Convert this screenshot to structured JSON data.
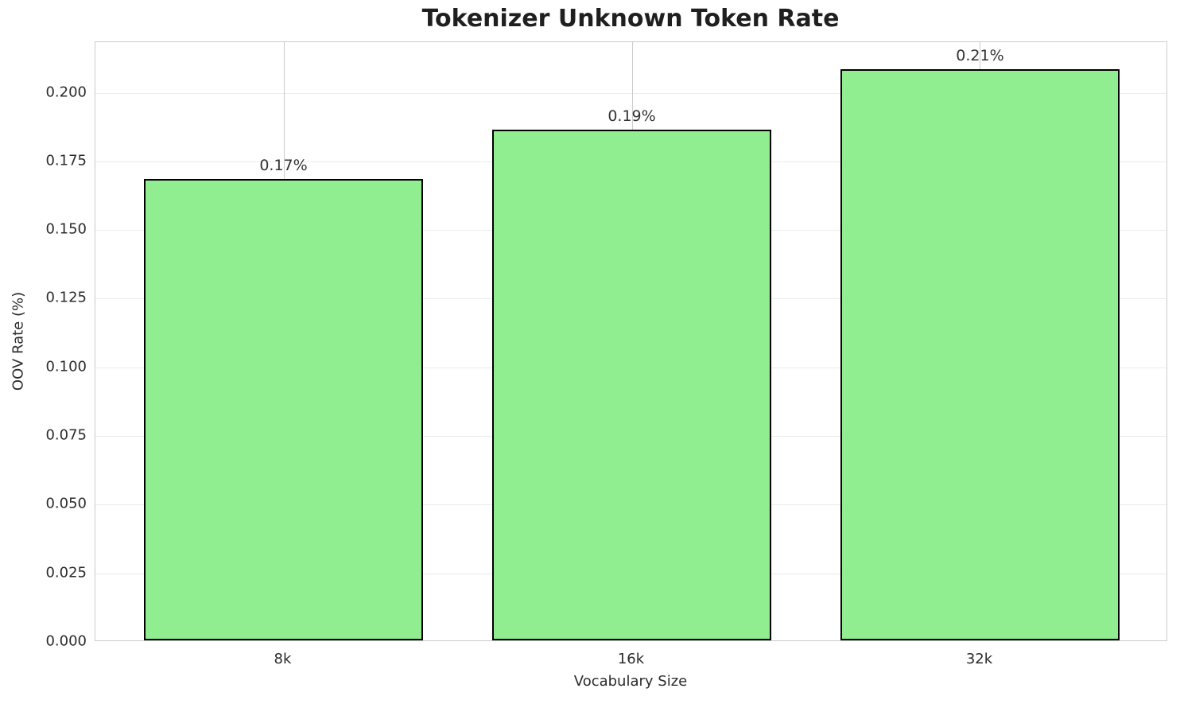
{
  "chart_data": {
    "type": "bar",
    "title": "Tokenizer Unknown Token Rate",
    "xlabel": "Vocabulary Size",
    "ylabel": "OOV Rate (%)",
    "categories": [
      "8k",
      "16k",
      "32k"
    ],
    "values": [
      0.168,
      0.186,
      0.208
    ],
    "bar_labels": [
      "0.17%",
      "0.19%",
      "0.21%"
    ],
    "ylim": [
      0,
      0.2184
    ],
    "yticks": [
      0.0,
      0.025,
      0.05,
      0.075,
      0.1,
      0.125,
      0.15,
      0.175,
      0.2
    ],
    "ytick_labels": [
      "0.000",
      "0.025",
      "0.050",
      "0.075",
      "0.100",
      "0.125",
      "0.150",
      "0.175",
      "0.200"
    ],
    "grid": true,
    "legend": false,
    "bar_color": "#90EE90",
    "bar_edge_color": "#000000",
    "spine_color": "#cccccc",
    "grid_color_horizontal": "#ececec",
    "grid_color_vertical": "#cccccc",
    "background_color": "#ffffff",
    "bar_width_fraction": 0.8
  }
}
